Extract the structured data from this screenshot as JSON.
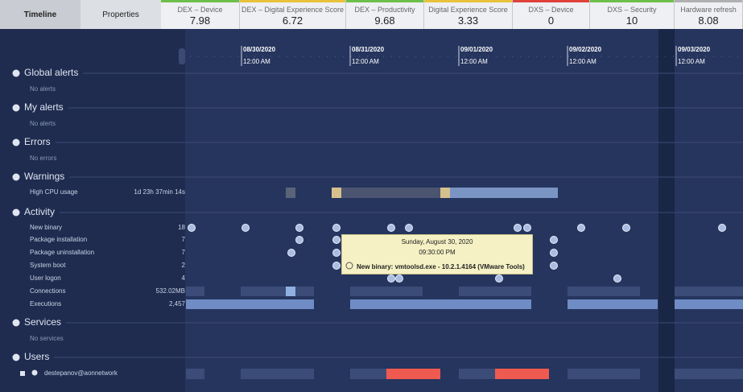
{
  "tabs": [
    "Timeline",
    "Properties"
  ],
  "metrics": [
    {
      "label": "DEX – Device",
      "value": "7.98",
      "color": "#6cc04a"
    },
    {
      "label": "DEX – Digital Experience Score",
      "value": "6.72",
      "color": "#e8c23a"
    },
    {
      "label": "DEX – Productivity",
      "value": "9.68",
      "color": "#6cc04a"
    },
    {
      "label": "Digital Experience Score",
      "value": "3.33",
      "color": "#e8c23a"
    },
    {
      "label": "DXS – Device",
      "value": "0",
      "color": "#e0413b"
    },
    {
      "label": "DXS – Security",
      "value": "10",
      "color": "#6cc04a"
    },
    {
      "label": "Hardware refresh",
      "value": "8.08",
      "color": "#b0b0b0"
    }
  ],
  "timeline": [
    {
      "date": "08/30/2020",
      "time": "12:00 AM"
    },
    {
      "date": "08/31/2020",
      "time": "12:00 AM"
    },
    {
      "date": "09/01/2020",
      "time": "12:00 AM"
    },
    {
      "date": "09/02/2020",
      "time": "12:00 AM"
    },
    {
      "date": "09/03/2020",
      "time": "12:00 AM"
    }
  ],
  "sections": [
    {
      "title": "Global alerts",
      "note": "No alerts"
    },
    {
      "title": "My alerts",
      "note": "No alerts"
    },
    {
      "title": "Errors",
      "note": "No errors"
    },
    {
      "title": "Warnings",
      "rows": [
        {
          "label": "High CPU usage",
          "value": "1d 23h 37min 14s"
        }
      ]
    },
    {
      "title": "Activity",
      "rows": [
        {
          "label": "New binary",
          "value": "18"
        },
        {
          "label": "Package installation",
          "value": "7"
        },
        {
          "label": "Package uninstallation",
          "value": "7"
        },
        {
          "label": "System boot",
          "value": "2"
        },
        {
          "label": "User logon",
          "value": "4"
        },
        {
          "label": "Connections",
          "value": "532.02MB"
        },
        {
          "label": "Executions",
          "value": "2,457"
        }
      ]
    },
    {
      "title": "Services",
      "note": "No services"
    },
    {
      "title": "Users",
      "rows": [
        {
          "label": "destepanov@aonnetwork"
        }
      ]
    }
  ],
  "tooltip": {
    "date": "Sunday, August 30, 2020",
    "time": "09:30:00 PM",
    "text": "New binary: vmtoolsd.exe - 10.2.1.4164 (VMware Tools)"
  }
}
